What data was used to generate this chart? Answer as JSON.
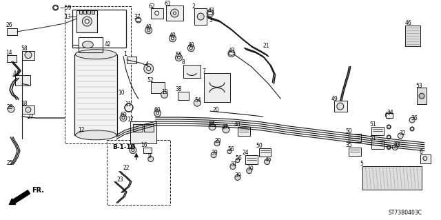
{
  "figsize": [
    6.4,
    3.19
  ],
  "dpi": 100,
  "background_color": "#ffffff",
  "diagram_code": "ST73B0403C",
  "line_color": "#1a1a1a",
  "text_color": "#000000"
}
